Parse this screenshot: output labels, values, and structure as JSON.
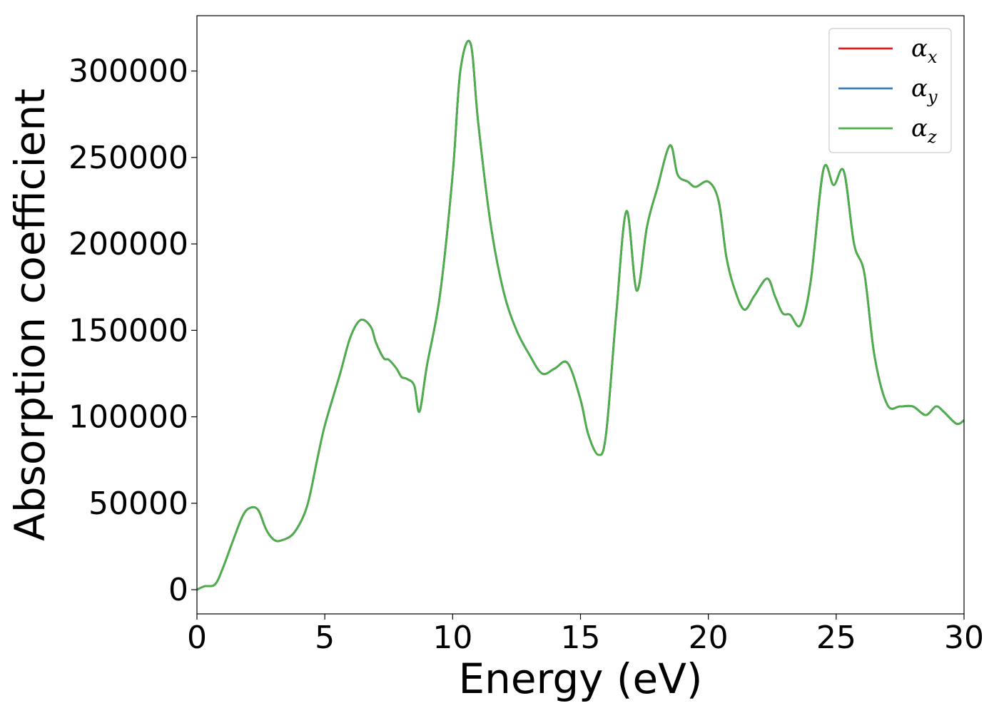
{
  "chart_data": {
    "type": "line",
    "title": "",
    "xlabel": "Energy (eV)",
    "ylabel": "Absorption coefficient",
    "xlim": [
      0,
      30
    ],
    "ylim": [
      -14000,
      332000
    ],
    "xticks": [
      0,
      5,
      10,
      15,
      20,
      25,
      30
    ],
    "yticks": [
      0,
      50000,
      100000,
      150000,
      200000,
      250000,
      300000
    ],
    "grid": false,
    "legend_position": "top-right",
    "x": [
      0,
      0.3,
      0.7,
      1.0,
      1.4,
      1.8,
      2.1,
      2.4,
      2.7,
      3.0,
      3.3,
      3.8,
      4.3,
      4.7,
      5.0,
      5.6,
      6.0,
      6.4,
      6.8,
      7.0,
      7.3,
      7.5,
      7.8,
      8.0,
      8.2,
      8.5,
      8.7,
      9.0,
      9.5,
      10.0,
      10.3,
      10.7,
      11.0,
      11.5,
      12.0,
      12.5,
      13.0,
      13.5,
      14.0,
      14.5,
      15.0,
      15.3,
      15.7,
      16.0,
      16.4,
      16.8,
      17.2,
      17.6,
      18.0,
      18.5,
      18.8,
      19.2,
      19.5,
      20.0,
      20.4,
      20.7,
      21.0,
      21.4,
      21.8,
      22.3,
      22.6,
      22.9,
      23.2,
      23.6,
      24.0,
      24.5,
      24.9,
      25.3,
      25.7,
      26.1,
      26.5,
      27.0,
      27.5,
      28.0,
      28.5,
      28.9,
      29.2,
      29.7,
      30.0
    ],
    "series": [
      {
        "name": "α_x",
        "color": "#e41a1c",
        "values": [
          0,
          2000,
          3000,
          12000,
          28000,
          43000,
          47500,
          46000,
          35000,
          29000,
          28500,
          33000,
          48000,
          75000,
          95000,
          125000,
          146000,
          156000,
          152000,
          143000,
          134000,
          133000,
          128000,
          123000,
          122000,
          118000,
          103000,
          130000,
          170000,
          240000,
          300000,
          316000,
          270000,
          210000,
          172000,
          150000,
          136000,
          125000,
          128000,
          131000,
          110000,
          90000,
          78000,
          90000,
          160000,
          219000,
          173000,
          210000,
          232000,
          257000,
          240000,
          236000,
          233000,
          236000,
          225000,
          193000,
          175000,
          162000,
          170000,
          180000,
          170000,
          160000,
          159000,
          153000,
          178000,
          243000,
          234000,
          242000,
          200000,
          183000,
          135000,
          107000,
          106000,
          106000,
          101000,
          106000,
          103000,
          96000,
          98000
        ]
      },
      {
        "name": "α_y",
        "color": "#377eb8",
        "values": [
          0,
          2000,
          3000,
          12000,
          28000,
          43000,
          47500,
          46000,
          35000,
          29000,
          28500,
          33000,
          48000,
          75000,
          95000,
          125000,
          146000,
          156000,
          152000,
          143000,
          134000,
          133000,
          128000,
          123000,
          122000,
          118000,
          103000,
          130000,
          170000,
          240000,
          300000,
          316000,
          270000,
          210000,
          172000,
          150000,
          136000,
          125000,
          128000,
          131000,
          110000,
          90000,
          78000,
          90000,
          160000,
          219000,
          173000,
          210000,
          232000,
          257000,
          240000,
          236000,
          233000,
          236000,
          225000,
          193000,
          175000,
          162000,
          170000,
          180000,
          170000,
          160000,
          159000,
          153000,
          178000,
          243000,
          234000,
          242000,
          200000,
          183000,
          135000,
          107000,
          106000,
          106000,
          101000,
          106000,
          103000,
          96000,
          98000
        ]
      },
      {
        "name": "α_z",
        "color": "#4daf4a",
        "values": [
          0,
          2000,
          3000,
          12000,
          28000,
          43000,
          47500,
          46000,
          35000,
          29000,
          28500,
          33000,
          48000,
          75000,
          95000,
          125000,
          146000,
          156000,
          152000,
          143000,
          134000,
          133000,
          128000,
          123000,
          122000,
          118000,
          103000,
          130000,
          170000,
          240000,
          300000,
          316000,
          270000,
          210000,
          172000,
          150000,
          136000,
          125000,
          128000,
          131000,
          110000,
          90000,
          78000,
          90000,
          160000,
          219000,
          173000,
          210000,
          232000,
          257000,
          240000,
          236000,
          233000,
          236000,
          225000,
          193000,
          175000,
          162000,
          170000,
          180000,
          170000,
          160000,
          159000,
          153000,
          178000,
          243000,
          234000,
          242000,
          200000,
          183000,
          135000,
          107000,
          106000,
          106000,
          101000,
          106000,
          103000,
          96000,
          98000
        ]
      }
    ],
    "legend": [
      {
        "symbol": "α",
        "sub": "x"
      },
      {
        "symbol": "α",
        "sub": "y"
      },
      {
        "symbol": "α",
        "sub": "z"
      }
    ]
  }
}
